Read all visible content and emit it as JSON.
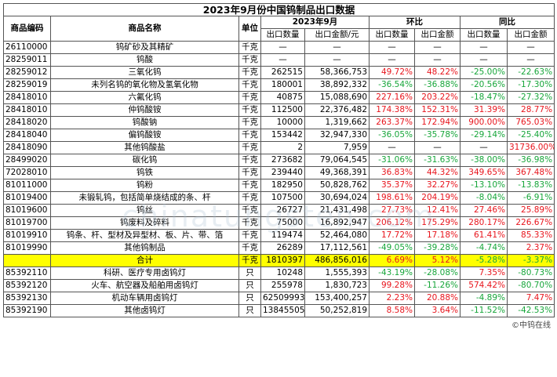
{
  "title": "2023年9月份中国钨制品出口数据",
  "headers": {
    "code": "商品编码",
    "name": "商品名称",
    "unit": "单位",
    "month": "2023年9月",
    "mom": "环比",
    "yoy": "同比",
    "qty": "出口数量",
    "amount": "出口金额/元",
    "qty2": "出口数量",
    "amount2": "出口金额",
    "qty3": "出口数量",
    "amount3": "出口金额"
  },
  "rows": [
    {
      "code": "26110000",
      "name": "钨矿砂及其精矿",
      "unit": "千克",
      "qty": "—",
      "amount": "—",
      "mom_qty": "—",
      "mom_amt": "—",
      "yoy_qty": "—",
      "yoy_amt": "—"
    },
    {
      "code": "28259011",
      "name": "钨酸",
      "unit": "千克",
      "qty": "—",
      "amount": "—",
      "mom_qty": "—",
      "mom_amt": "—",
      "yoy_qty": "—",
      "yoy_amt": "—"
    },
    {
      "code": "28259012",
      "name": "三氧化钨",
      "unit": "千克",
      "qty": "262515",
      "amount": "58,366,753",
      "mom_qty": "49.72%",
      "mom_amt": "48.22%",
      "yoy_qty": "-25.00%",
      "yoy_amt": "-22.63%"
    },
    {
      "code": "28259019",
      "name": "未列名钨的氧化物及氢氧化物",
      "unit": "千克",
      "qty": "180001",
      "amount": "38,892,332",
      "mom_qty": "-36.54%",
      "mom_amt": "-36.88%",
      "yoy_qty": "-20.56%",
      "yoy_amt": "-17.30%"
    },
    {
      "code": "28418010",
      "name": "六氟化钨",
      "unit": "千克",
      "qty": "40875",
      "amount": "15,088,690",
      "mom_qty": "227.16%",
      "mom_amt": "203.22%",
      "yoy_qty": "-18.47%",
      "yoy_amt": "-27.32%"
    },
    {
      "code": "28418010",
      "name": "仲钨酸铵",
      "unit": "千克",
      "qty": "112500",
      "amount": "22,376,482",
      "mom_qty": "174.38%",
      "mom_amt": "152.31%",
      "yoy_qty": "31.39%",
      "yoy_amt": "28.77%"
    },
    {
      "code": "28418020",
      "name": "钨酸钠",
      "unit": "千克",
      "qty": "10000",
      "amount": "1,319,662",
      "mom_qty": "263.37%",
      "mom_amt": "172.94%",
      "yoy_qty": "900.00%",
      "yoy_amt": "765.03%"
    },
    {
      "code": "28418040",
      "name": "偏钨酸铵",
      "unit": "千克",
      "qty": "153442",
      "amount": "32,947,330",
      "mom_qty": "-36.05%",
      "mom_amt": "-35.78%",
      "yoy_qty": "-29.14%",
      "yoy_amt": "-25.40%"
    },
    {
      "code": "28418090",
      "name": "其他钨酸盐",
      "unit": "千克",
      "qty": "2",
      "amount": "7,959",
      "mom_qty": "—",
      "mom_amt": "—",
      "yoy_qty": "—",
      "yoy_amt": "31736.00%"
    },
    {
      "code": "28499020",
      "name": "碳化钨",
      "unit": "千克",
      "qty": "273682",
      "amount": "79,064,545",
      "mom_qty": "-31.06%",
      "mom_amt": "-31.63%",
      "yoy_qty": "-38.00%",
      "yoy_amt": "-36.98%"
    },
    {
      "code": "72028010",
      "name": "钨铁",
      "unit": "千克",
      "qty": "239440",
      "amount": "49,368,391",
      "mom_qty": "36.83%",
      "mom_amt": "44.32%",
      "yoy_qty": "349.65%",
      "yoy_amt": "367.48%"
    },
    {
      "code": "81011000",
      "name": "钨粉",
      "unit": "千克",
      "qty": "182950",
      "amount": "50,828,762",
      "mom_qty": "35.37%",
      "mom_amt": "32.27%",
      "yoy_qty": "-13.10%",
      "yoy_amt": "-13.83%"
    },
    {
      "code": "81019400",
      "name": "未锻轧钨，包括简单烧结成的条、杆",
      "unit": "千克",
      "qty": "107500",
      "amount": "30,694,024",
      "mom_qty": "198.61%",
      "mom_amt": "204.19%",
      "yoy_qty": "-8.04%",
      "yoy_amt": "-6.91%"
    },
    {
      "code": "81019600",
      "name": "钨丝",
      "unit": "千克",
      "qty": "26727",
      "amount": "21,431,498",
      "mom_qty": "27.73%",
      "mom_amt": "12.41%",
      "yoy_qty": "27.46%",
      "yoy_amt": "25.89%"
    },
    {
      "code": "81019700",
      "name": "钨废料及碎料",
      "unit": "千克",
      "qty": "75000",
      "amount": "16,892,947",
      "mom_qty": "206.12%",
      "mom_amt": "175.29%",
      "yoy_qty": "280.17%",
      "yoy_amt": "226.67%"
    },
    {
      "code": "81019910",
      "name": "钨条、杆、型材及异型材、板、片、带、箔",
      "unit": "千克",
      "qty": "119474",
      "amount": "52,464,080",
      "mom_qty": "17.72%",
      "mom_amt": "17.18%",
      "yoy_qty": "61.41%",
      "yoy_amt": "85.33%"
    },
    {
      "code": "81019990",
      "name": "其他钨制品",
      "unit": "千克",
      "qty": "26289",
      "amount": "17,112,561",
      "mom_qty": "-49.05%",
      "mom_amt": "-39.28%",
      "yoy_qty": "-4.74%",
      "yoy_amt": "2.37%"
    },
    {
      "code": "",
      "name": "合计",
      "unit": "千克",
      "qty": "1810397",
      "amount": "486,856,016",
      "mom_qty": "6.69%",
      "mom_amt": "5.12%",
      "yoy_qty": "-5.28%",
      "yoy_amt": "-3.37%",
      "total": true
    },
    {
      "code": "85392110",
      "name": "科研、医疗专用卤钨灯",
      "unit": "只",
      "qty": "10248",
      "amount": "1,555,393",
      "mom_qty": "-43.19%",
      "mom_amt": "-28.08%",
      "yoy_qty": "7.35%",
      "yoy_amt": "-80.73%"
    },
    {
      "code": "85392120",
      "name": "火车、航空器及船舶用卤钨灯",
      "unit": "只",
      "qty": "255978",
      "amount": "1,830,723",
      "mom_qty": "99.28%",
      "mom_amt": "-11.26%",
      "yoy_qty": "574.42%",
      "yoy_amt": "-80.70%"
    },
    {
      "code": "85392130",
      "name": "机动车辆用卤钨灯",
      "unit": "只",
      "qty": "62509993",
      "amount": "153,400,257",
      "mom_qty": "2.23%",
      "mom_amt": "20.88%",
      "yoy_qty": "-4.89%",
      "yoy_amt": "7.47%"
    },
    {
      "code": "85392190",
      "name": "其他卤钨灯",
      "unit": "只",
      "qty": "13845505",
      "amount": "50,252,819",
      "mom_qty": "8.58%",
      "mom_amt": "3.64%",
      "yoy_qty": "-11.52%",
      "yoy_amt": "-42.53%"
    }
  ],
  "watermark": "chinatungsten.com",
  "credit": "©中钨在线",
  "colors": {
    "positive": "#e8141c",
    "negative": "#17a63a",
    "total_bg": "#ffff00"
  }
}
